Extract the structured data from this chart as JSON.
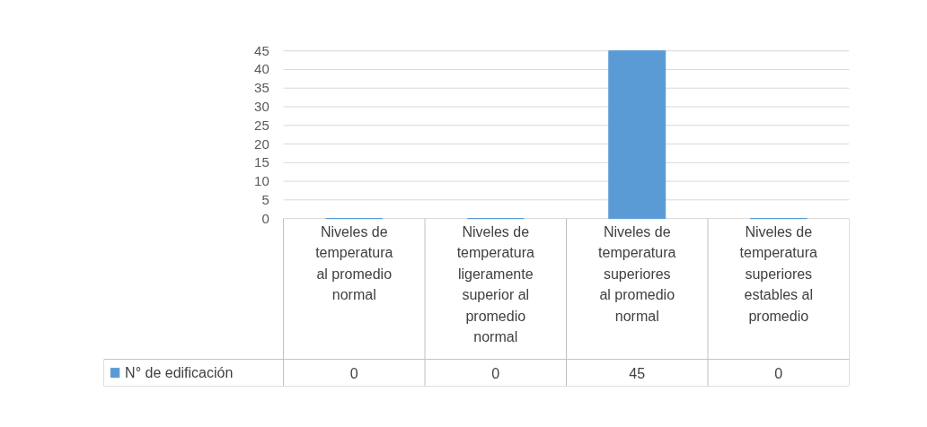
{
  "chart_data": {
    "type": "bar",
    "categories": [
      "Niveles de temperatura al promedio normal",
      "Niveles de temperatura ligeramente superior al promedio normal",
      "Niveles de temperatura superiores al promedio normal",
      "Niveles de temperatura superiores estables al promedio"
    ],
    "series": [
      {
        "name": "N° de edificación",
        "color": "#5b9bd5",
        "values": [
          0,
          0,
          45,
          0
        ]
      }
    ],
    "ylim": [
      0,
      45
    ],
    "yticks": [
      0,
      5,
      10,
      15,
      20,
      25,
      30,
      35,
      40,
      45
    ],
    "grid": "y",
    "legend": "bottom",
    "data_labels": true
  }
}
